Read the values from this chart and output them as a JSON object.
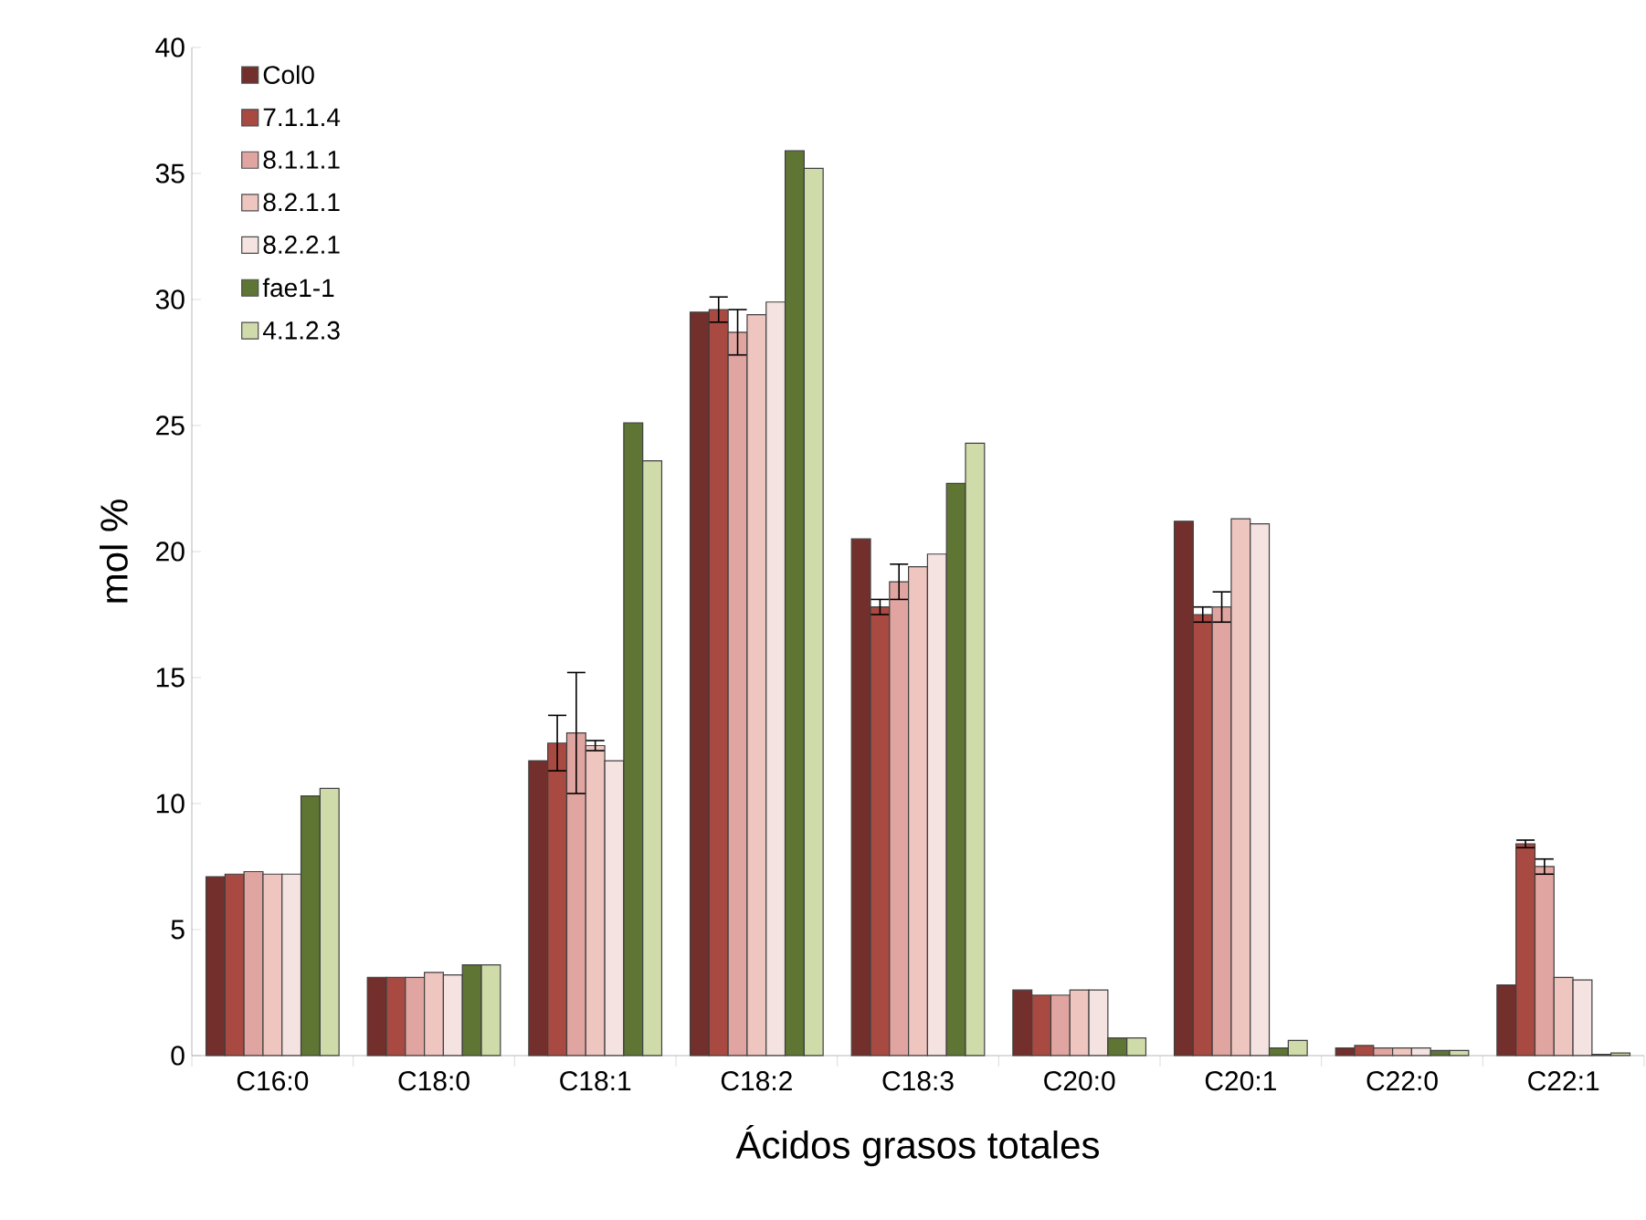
{
  "chart_data": {
    "type": "bar",
    "xlabel": "Ácidos grasos totales",
    "ylabel": "mol %",
    "categories": [
      "C16:0",
      "C18:0",
      "C18:1",
      "C18:2",
      "C18:3",
      "C20:0",
      "C20:1",
      "C22:0",
      "C22:1"
    ],
    "series": [
      {
        "name": "Col0",
        "color": "#722f2c",
        "values": [
          7.1,
          3.1,
          11.7,
          29.5,
          20.5,
          2.6,
          21.2,
          0.3,
          2.8
        ]
      },
      {
        "name": "7.1.1.4",
        "color": "#a84a42",
        "values": [
          7.2,
          3.1,
          12.4,
          29.6,
          17.8,
          2.4,
          17.5,
          0.4,
          8.4
        ],
        "errors": [
          null,
          null,
          1.1,
          0.5,
          0.3,
          null,
          0.3,
          null,
          0.15
        ]
      },
      {
        "name": "8.1.1.1",
        "color": "#e0a5a0",
        "values": [
          7.3,
          3.1,
          12.8,
          28.7,
          18.8,
          2.4,
          17.8,
          0.3,
          7.5
        ],
        "errors": [
          null,
          null,
          2.4,
          0.9,
          0.7,
          null,
          0.6,
          null,
          0.3
        ]
      },
      {
        "name": "8.2.1.1",
        "color": "#efc5c0",
        "values": [
          7.2,
          3.3,
          12.3,
          29.4,
          19.4,
          2.6,
          21.3,
          0.3,
          3.1
        ],
        "errors": [
          null,
          null,
          0.2,
          null,
          null,
          null,
          null,
          null,
          null
        ]
      },
      {
        "name": "8.2.2.1",
        "color": "#f4e3e0",
        "values": [
          7.2,
          3.2,
          11.7,
          29.9,
          19.9,
          2.6,
          21.1,
          0.3,
          3.0
        ]
      },
      {
        "name": "fae1-1",
        "color": "#5e7533",
        "values": [
          10.3,
          3.6,
          25.1,
          35.9,
          22.7,
          0.7,
          0.3,
          0.2,
          0.05
        ]
      },
      {
        "name": "4.1.2.3",
        "color": "#cfdcaa",
        "values": [
          10.6,
          3.6,
          23.6,
          35.2,
          24.3,
          0.7,
          0.6,
          0.2,
          0.1
        ]
      }
    ],
    "ylim": [
      0,
      40
    ],
    "yticks": [
      0,
      5,
      10,
      15,
      20,
      25,
      30,
      35,
      40
    ],
    "legend": "top left",
    "grid": false
  }
}
